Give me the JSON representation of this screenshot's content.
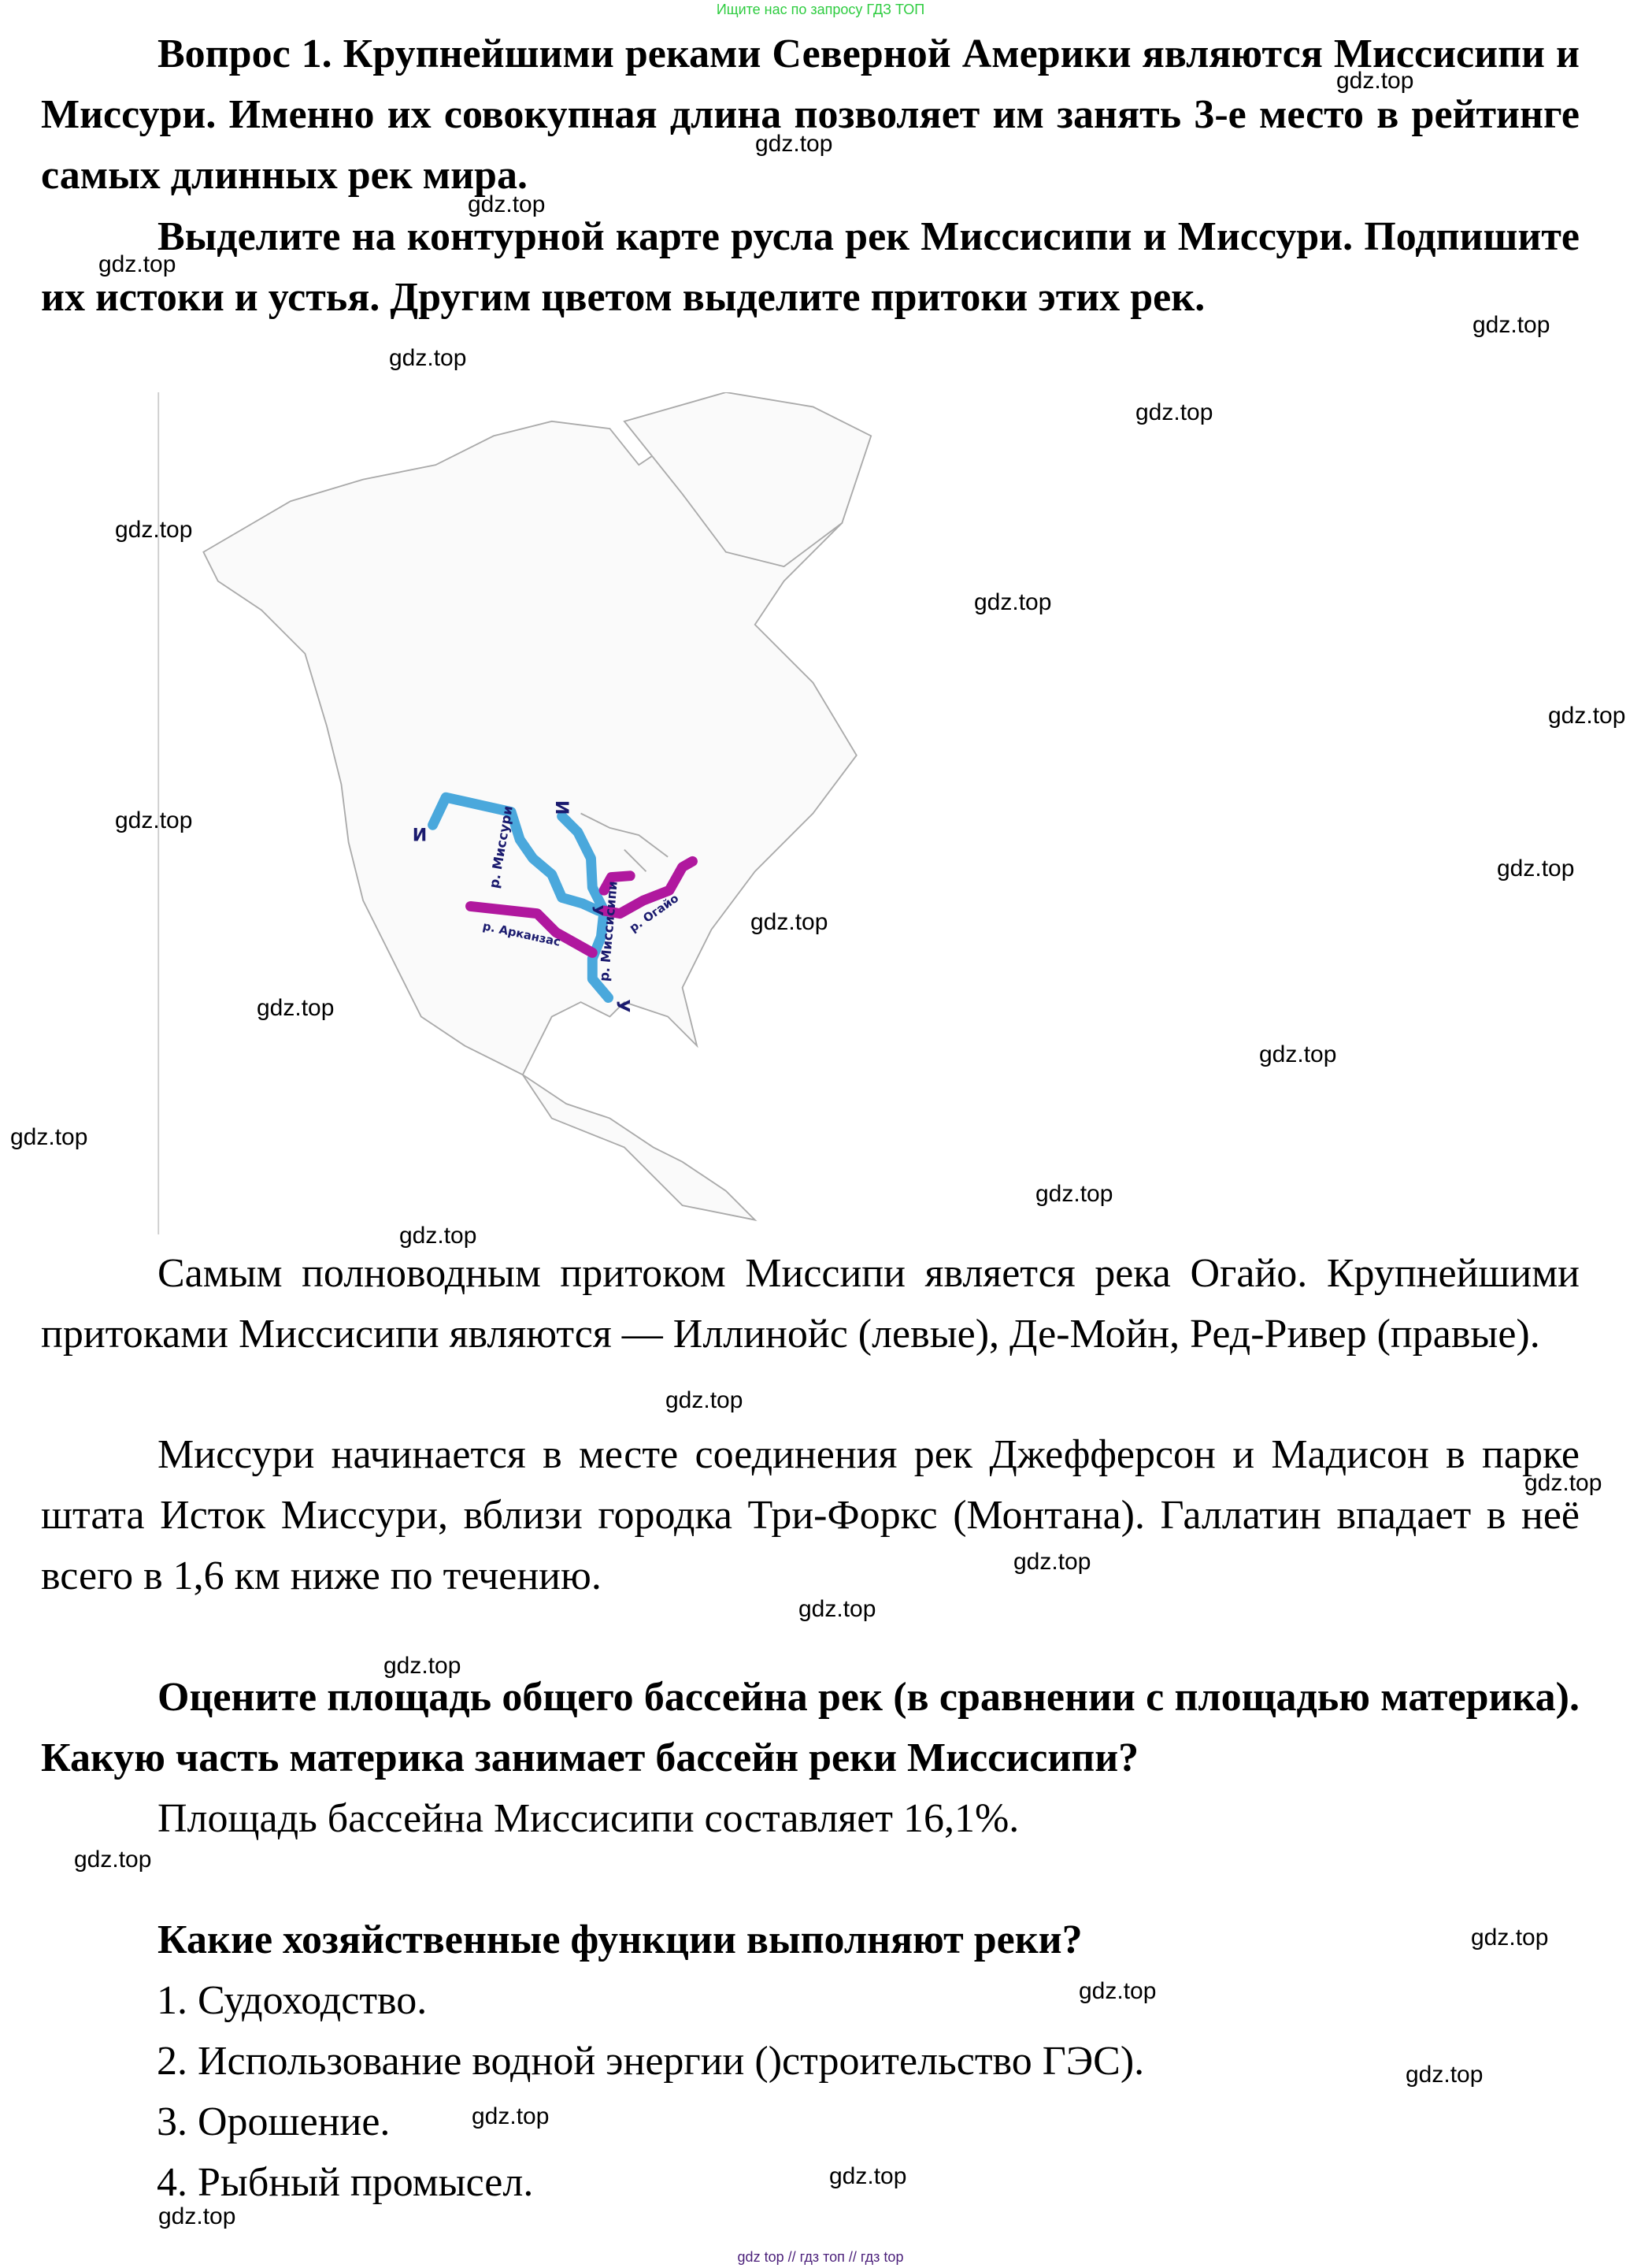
{
  "top_banner": "Ищите нас по запросу ГДЗ ТОП",
  "bottom_banner": "gdz top  //  гдз топ  //  гдз top",
  "watermark": "gdz.top",
  "q1": {
    "heading": "Вопрос 1. Крупнейшими реками Северной Америки являются Миссисипи и Миссури. Именно их совокупная длина позволяет им занять 3-е место в рейтинге самых длинных рек мира.",
    "task": "Выделите на контурной карте русла рек Миссисипи и Миссури. Подпишите их истоки и устья. Другим цветом выделите притоки этих рек."
  },
  "map": {
    "labels": {
      "source": "И",
      "mouth": "У",
      "missouri": "р. Миссури",
      "mississippi": "р. Миссисипи",
      "arkansas": "р. Арканзас",
      "ohio": "р. Огайо"
    },
    "colors": {
      "main_rivers": "#4aa8dc",
      "tributaries": "#b0189e",
      "labels": "#1a1a6e"
    }
  },
  "answer1": {
    "p1": "Самым полноводным притоком Миссипи является река Огайо. Крупнейшими притоками Миссисипи являются — Иллинойс (левые), Де-Мойн, Ред-Ривер (правые).",
    "p2": "Миссури начинается в месте соединения рек Джефферсон и Мадисон в парке штата Исток Миссури, вблизи городка Три-Форкс (Монтана). Галлатин впадает в неё всего в 1,6 км ниже по течению."
  },
  "q2": {
    "heading": "Оцените площадь общего бассейна рек (в сравнении с площадью материка). Какую часть материка занимает бассейн реки Миссисипи?",
    "answer": "Площадь бассейна Миссисипи составляет 16,1%."
  },
  "q3": {
    "heading": "Какие хозяйственные функции выполняют реки?",
    "items": [
      "1.  Судоходство.",
      "2.  Использование водной энергии ()строительство ГЭС).",
      "3.  Орошение.",
      "4.  Рыбный промысел."
    ]
  }
}
